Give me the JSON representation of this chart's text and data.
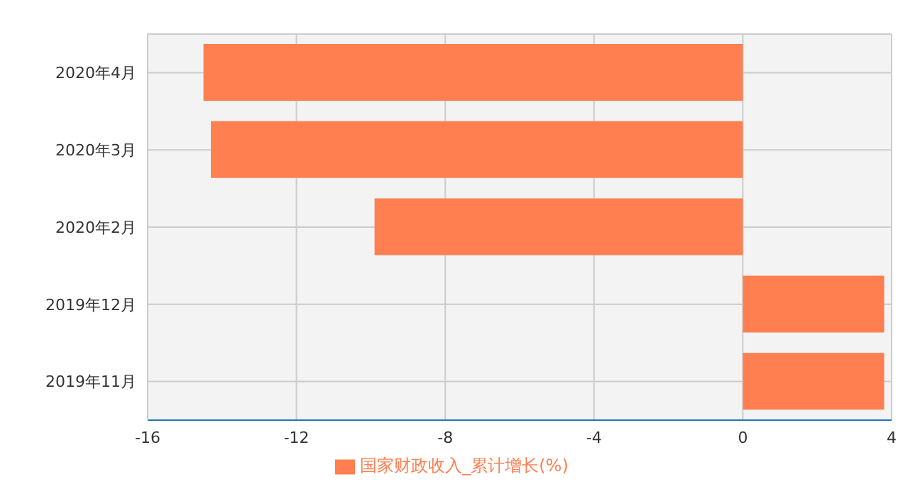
{
  "chart_data": {
    "type": "bar",
    "orientation": "horizontal",
    "categories": [
      "2020年4月",
      "2020年3月",
      "2020年2月",
      "2019年12月",
      "2019年11月"
    ],
    "series": [
      {
        "name": "国家财政收入_累计增长(%)",
        "color": "#ff7f50",
        "values": [
          -14.5,
          -14.3,
          -9.9,
          3.8,
          3.8
        ]
      }
    ],
    "xlim": [
      -16,
      4
    ],
    "xticks": [
      -16,
      -12,
      -8,
      -4,
      0,
      4
    ],
    "grid": "x",
    "legend": "bottom"
  }
}
